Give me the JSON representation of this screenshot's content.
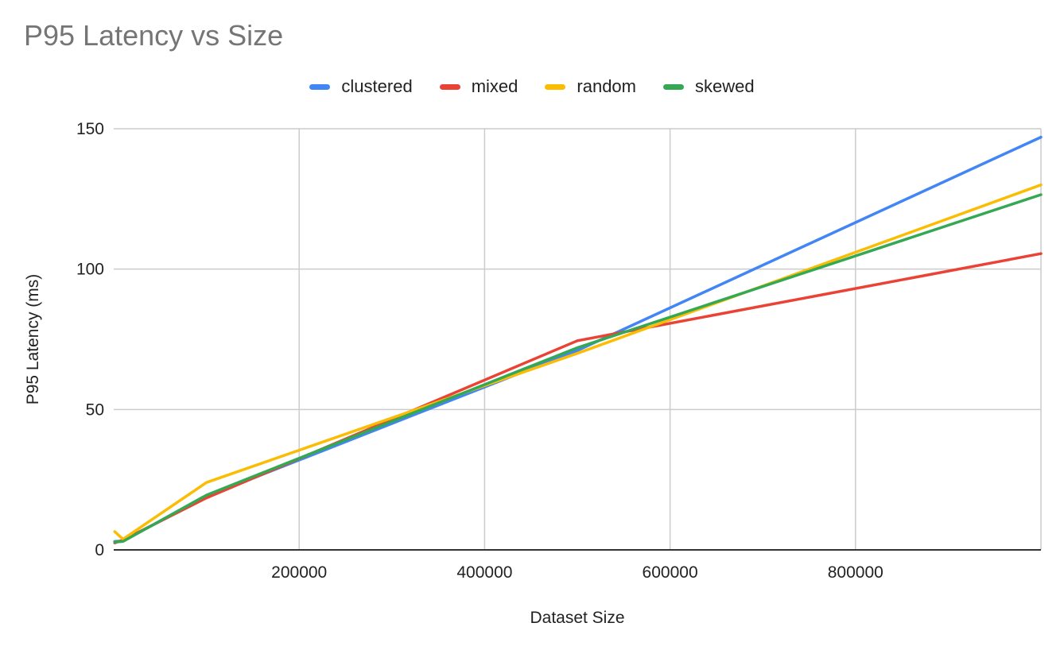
{
  "chart_data": {
    "type": "line",
    "title": "P95 Latency vs Size",
    "xlabel": "Dataset Size",
    "ylabel": "P95 Latency (ms)",
    "xlim": [
      0,
      1000000
    ],
    "ylim": [
      0,
      150
    ],
    "x_ticks": [
      200000,
      400000,
      600000,
      800000
    ],
    "y_ticks": [
      0,
      50,
      100,
      150
    ],
    "grid": true,
    "legend_position": "top",
    "x": [
      1000,
      10000,
      100000,
      500000,
      1000000
    ],
    "series": [
      {
        "name": "clustered",
        "color": "#4285F4",
        "values": [
          3,
          3.2,
          19,
          71,
          147
        ]
      },
      {
        "name": "mixed",
        "color": "#EA4335",
        "values": [
          2.5,
          3.5,
          18.5,
          74.5,
          105.5
        ]
      },
      {
        "name": "random",
        "color": "#FBBC04",
        "values": [
          6.5,
          3.8,
          24,
          70,
          130
        ]
      },
      {
        "name": "skewed",
        "color": "#34A853",
        "values": [
          2.8,
          3,
          19.5,
          72,
          126.5
        ]
      }
    ]
  }
}
